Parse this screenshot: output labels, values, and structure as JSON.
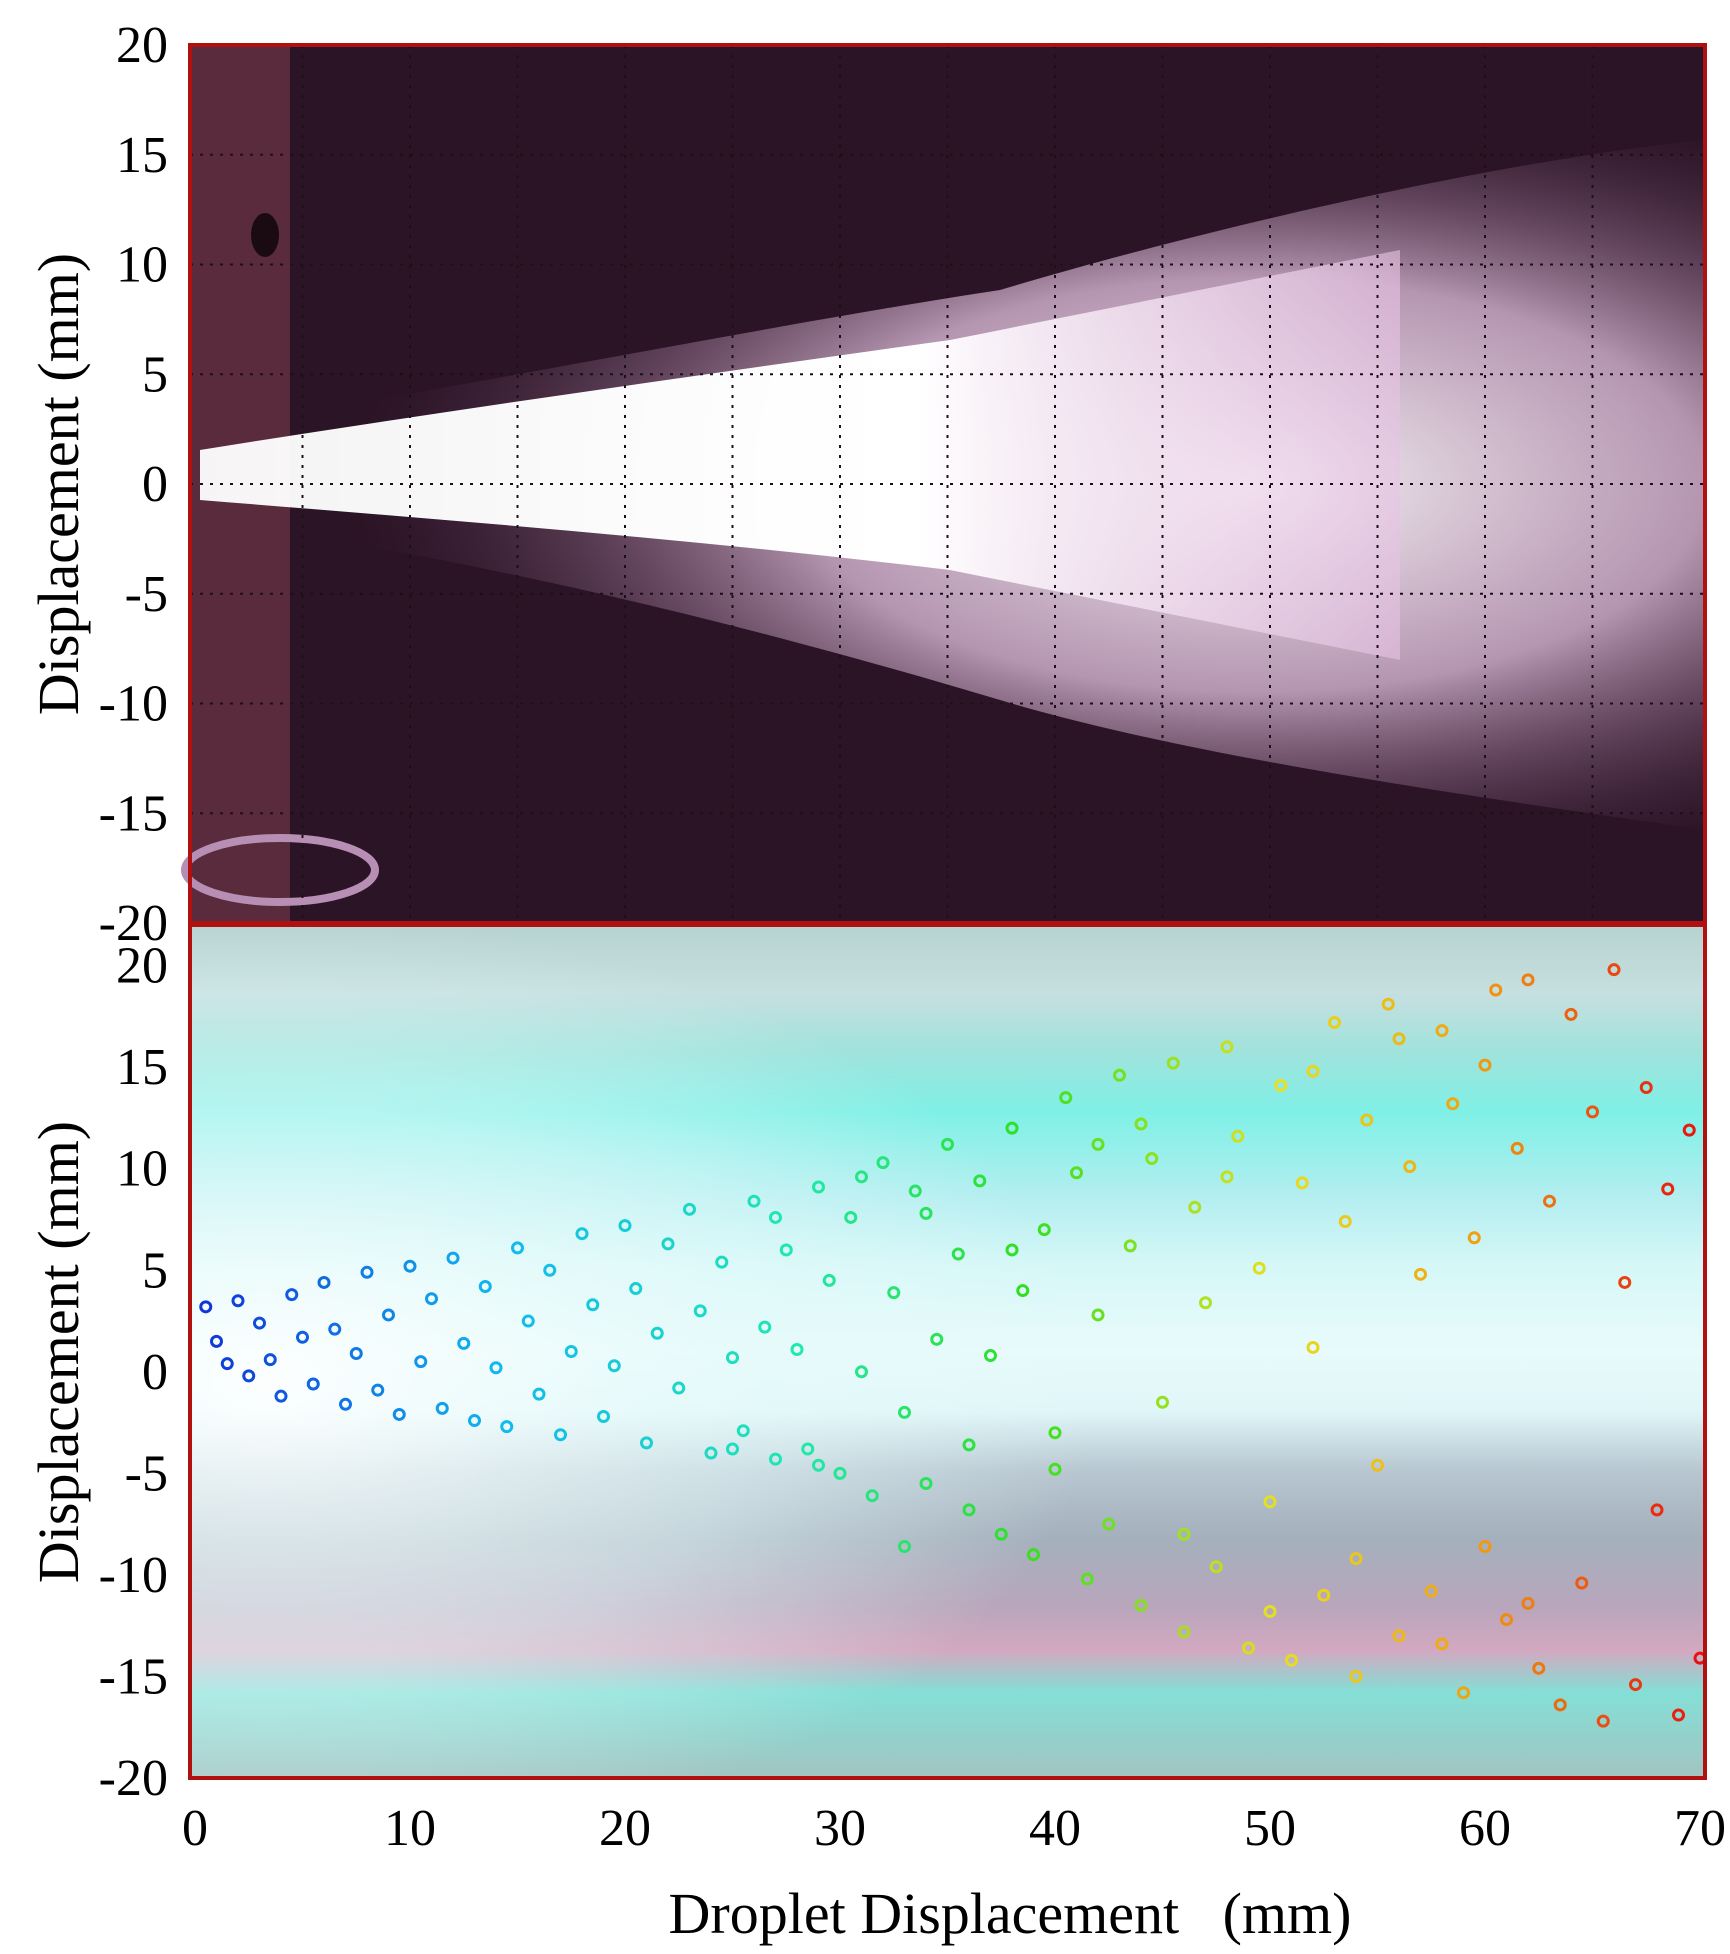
{
  "figure": {
    "panels": [
      {
        "name": "spray-photo-panel",
        "ylabel": "Displacement (mm)",
        "yticks": [
          "20",
          "15",
          "10",
          "5",
          "0",
          "-5",
          "-10",
          "-15",
          "-20"
        ],
        "ylim": [
          -20,
          20
        ],
        "xlim": [
          0,
          70
        ],
        "grid": true,
        "content": "photograph of spray plume"
      },
      {
        "name": "droplet-scatter-panel",
        "ylabel": "Displacement (mm)",
        "yticks": [
          "20",
          "15",
          "10",
          "5",
          "0",
          "-5",
          "-10",
          "-15",
          "-20"
        ],
        "ylim": [
          -20,
          22
        ],
        "xlim": [
          0,
          70
        ],
        "xticks": [
          "0",
          "10",
          "20",
          "30",
          "40",
          "50",
          "60",
          "70"
        ],
        "xlabel": "Droplet Displacement   (mm)",
        "content": "scatter of droplet positions colored from blue to red by axial position"
      }
    ],
    "colors": {
      "frame": "#b01010",
      "plume_dark": "#3a1a30",
      "plume_light": "#ffe8ff",
      "scatter_bg": "#a8e8e0"
    }
  },
  "chart_data": {
    "type": "scatter",
    "xlabel": "Droplet Displacement   (mm)",
    "ylabel": "Displacement (mm)",
    "xlim": [
      0,
      70
    ],
    "ylim": [
      -20,
      22
    ],
    "color_scale": [
      "blue",
      "cyan",
      "green",
      "yellow",
      "orange",
      "red"
    ],
    "series": [
      {
        "points": [
          [
            0.5,
            3.2
          ],
          [
            1,
            1.5
          ],
          [
            1.5,
            0.4
          ],
          [
            2,
            3.5
          ],
          [
            2.5,
            -0.2
          ],
          [
            3,
            2.4
          ],
          [
            3.5,
            0.6
          ],
          [
            4,
            -1.2
          ],
          [
            4.5,
            3.8
          ],
          [
            5,
            1.7
          ],
          [
            5.5,
            -0.6
          ],
          [
            6,
            4.4
          ],
          [
            6.5,
            2.1
          ],
          [
            7,
            -1.6
          ],
          [
            7.5,
            0.9
          ],
          [
            8,
            4.9
          ],
          [
            8.5,
            -0.9
          ],
          [
            9,
            2.8
          ],
          [
            9.5,
            -2.1
          ],
          [
            10,
            5.2
          ],
          [
            10.5,
            0.5
          ],
          [
            11,
            3.6
          ],
          [
            11.5,
            -1.8
          ],
          [
            12,
            5.6
          ],
          [
            12.5,
            1.4
          ],
          [
            13,
            -2.4
          ],
          [
            13.5,
            4.2
          ],
          [
            14,
            0.2
          ],
          [
            14.5,
            -2.7
          ],
          [
            15,
            6.1
          ],
          [
            15.5,
            2.5
          ],
          [
            16,
            -1.1
          ],
          [
            16.5,
            5.0
          ],
          [
            17,
            -3.1
          ],
          [
            17.5,
            1.0
          ],
          [
            18,
            6.8
          ],
          [
            18.5,
            3.3
          ],
          [
            19,
            -2.2
          ],
          [
            19.5,
            0.3
          ],
          [
            20,
            7.2
          ],
          [
            20.5,
            4.1
          ],
          [
            21,
            -3.5
          ],
          [
            21.5,
            1.9
          ],
          [
            22,
            6.3
          ],
          [
            22.5,
            -0.8
          ],
          [
            23,
            8.0
          ],
          [
            23.5,
            3.0
          ],
          [
            24,
            -4.0
          ],
          [
            24.5,
            5.4
          ],
          [
            25,
            0.7
          ],
          [
            25.5,
            -2.9
          ],
          [
            26,
            8.4
          ],
          [
            26.5,
            2.2
          ],
          [
            27,
            -4.3
          ],
          [
            27.5,
            6.0
          ],
          [
            28,
            1.1
          ],
          [
            28.5,
            -3.8
          ],
          [
            29,
            9.1
          ],
          [
            29.5,
            4.5
          ],
          [
            30,
            -5.0
          ],
          [
            30.5,
            7.6
          ],
          [
            31,
            0.0
          ],
          [
            31.5,
            -6.1
          ],
          [
            32,
            10.3
          ],
          [
            32.5,
            3.9
          ],
          [
            33,
            -2.0
          ],
          [
            33.5,
            8.9
          ],
          [
            34,
            -5.5
          ],
          [
            34.5,
            1.6
          ],
          [
            35,
            11.2
          ],
          [
            35.5,
            5.8
          ],
          [
            36,
            -6.8
          ],
          [
            36.5,
            9.4
          ],
          [
            37,
            0.8
          ],
          [
            37.5,
            -8.0
          ],
          [
            38,
            12.0
          ],
          [
            38.5,
            4.0
          ],
          [
            39,
            -9.0
          ],
          [
            39.5,
            7.0
          ],
          [
            40,
            -3.0
          ],
          [
            40.5,
            13.5
          ],
          [
            41,
            9.8
          ],
          [
            41.5,
            -10.2
          ],
          [
            42,
            2.8
          ],
          [
            42.5,
            -7.5
          ],
          [
            43,
            14.6
          ],
          [
            43.5,
            6.2
          ],
          [
            44,
            -11.5
          ],
          [
            44.5,
            10.5
          ],
          [
            45,
            -1.5
          ],
          [
            45.5,
            15.2
          ],
          [
            46,
            -12.8
          ],
          [
            46.5,
            8.1
          ],
          [
            47,
            3.4
          ],
          [
            47.5,
            -9.6
          ],
          [
            48,
            16.0
          ],
          [
            48.5,
            11.6
          ],
          [
            49,
            -13.6
          ],
          [
            49.5,
            5.1
          ],
          [
            50,
            -6.4
          ],
          [
            50.5,
            14.1
          ],
          [
            51,
            -14.2
          ],
          [
            51.5,
            9.3
          ],
          [
            52,
            1.2
          ],
          [
            52.5,
            -11.0
          ],
          [
            53,
            17.2
          ],
          [
            53.5,
            7.4
          ],
          [
            54,
            -15.0
          ],
          [
            54.5,
            12.4
          ],
          [
            55,
            -4.6
          ],
          [
            55.5,
            18.1
          ],
          [
            56,
            -13.0
          ],
          [
            56.5,
            10.1
          ],
          [
            57,
            4.8
          ],
          [
            57.5,
            -10.8
          ],
          [
            58,
            16.8
          ],
          [
            58.5,
            13.2
          ],
          [
            59,
            -15.8
          ],
          [
            59.5,
            6.6
          ],
          [
            60,
            -8.6
          ],
          [
            60.5,
            18.8
          ],
          [
            61,
            -12.2
          ],
          [
            61.5,
            11.0
          ],
          [
            62,
            19.3
          ],
          [
            62.5,
            -14.6
          ],
          [
            63,
            8.4
          ],
          [
            63.5,
            -16.4
          ],
          [
            64,
            17.6
          ],
          [
            64.5,
            -10.4
          ],
          [
            65,
            12.8
          ],
          [
            65.5,
            -17.2
          ],
          [
            66,
            19.8
          ],
          [
            66.5,
            4.4
          ],
          [
            67,
            -15.4
          ],
          [
            67.5,
            14.0
          ],
          [
            68,
            -6.8
          ],
          [
            68.5,
            9.0
          ],
          [
            69,
            -16.9
          ],
          [
            69.5,
            11.9
          ],
          [
            70,
            -14.1
          ],
          [
            44,
            12.2
          ],
          [
            46,
            -8.0
          ],
          [
            48,
            9.6
          ],
          [
            50,
            -11.8
          ],
          [
            52,
            14.8
          ],
          [
            54,
            -9.2
          ],
          [
            56,
            16.4
          ],
          [
            58,
            -13.4
          ],
          [
            60,
            15.1
          ],
          [
            62,
            -11.4
          ],
          [
            38,
            6.0
          ],
          [
            40,
            -4.8
          ],
          [
            42,
            11.2
          ],
          [
            36,
            -3.6
          ],
          [
            34,
            7.8
          ],
          [
            33,
            -8.6
          ],
          [
            31,
            9.6
          ],
          [
            29,
            -4.6
          ],
          [
            27,
            7.6
          ],
          [
            25,
            -3.8
          ]
        ]
      }
    ]
  }
}
